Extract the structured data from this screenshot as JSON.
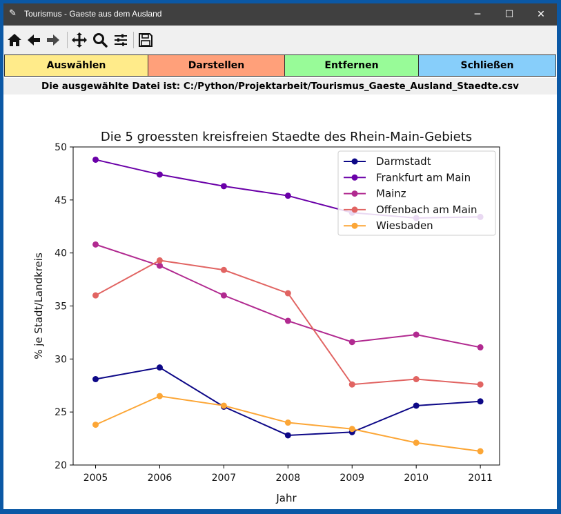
{
  "window": {
    "title": "Tourismus - Gaeste aus dem Ausland",
    "minimize_glyph": "─",
    "maximize_glyph": "☐",
    "close_glyph": "✕"
  },
  "toolbar": {
    "icons": [
      "home-icon",
      "back-arrow-icon",
      "forward-arrow-icon",
      "pan-icon",
      "zoom-icon",
      "configure-subplots-icon",
      "save-icon"
    ]
  },
  "buttons": {
    "select": {
      "label": "Auswählen",
      "color": "#ffeb8a"
    },
    "draw": {
      "label": "Darstellen",
      "color": "#ffa07a"
    },
    "remove": {
      "label": "Entfernen",
      "color": "#98fb98"
    },
    "close": {
      "label": "Schließen",
      "color": "#87cefa"
    }
  },
  "file_info": "Die ausgewählte Datei ist: C:/Python/Projektarbeit/Tourismus_Gaeste_Ausland_Staedte.csv",
  "chart_data": {
    "type": "line",
    "title": "Die 5 groessten kreisfreien Staedte des Rhein-Main-Gebiets",
    "xlabel": "Jahr",
    "ylabel": "% je Stadt/Landkreis",
    "x": [
      2005,
      2006,
      2007,
      2008,
      2009,
      2010,
      2011
    ],
    "ylim": [
      20,
      50
    ],
    "yticks": [
      20,
      25,
      30,
      35,
      40,
      45,
      50
    ],
    "grid": false,
    "legend": "top-right",
    "series": [
      {
        "name": "Darmstadt",
        "color": "#0d0887",
        "values": [
          28.1,
          29.2,
          25.5,
          22.8,
          23.1,
          25.6,
          26.0
        ]
      },
      {
        "name": "Frankfurt am Main",
        "color": "#6a00a8",
        "values": [
          48.8,
          47.4,
          46.3,
          45.4,
          43.8,
          43.3,
          43.4
        ]
      },
      {
        "name": "Mainz",
        "color": "#b12a90",
        "values": [
          40.8,
          38.8,
          36.0,
          33.6,
          31.6,
          32.3,
          31.1
        ]
      },
      {
        "name": "Offenbach am Main",
        "color": "#e16462",
        "values": [
          36.0,
          39.3,
          38.4,
          36.2,
          27.6,
          28.1,
          27.6
        ]
      },
      {
        "name": "Wiesbaden",
        "color": "#fca636",
        "values": [
          23.8,
          26.5,
          25.6,
          24.0,
          23.4,
          22.1,
          21.3
        ]
      }
    ]
  }
}
